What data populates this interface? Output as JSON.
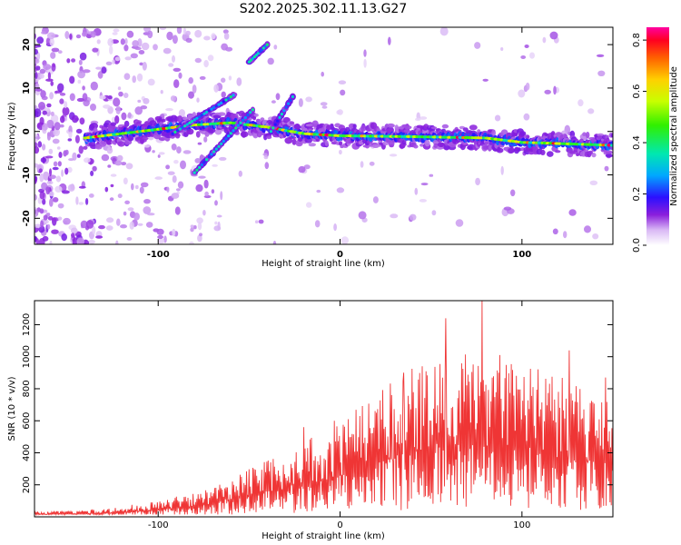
{
  "title": "S202.2025.302.11.13.G27",
  "chart_data": [
    {
      "type": "heatmap",
      "name": "spectrogram",
      "xlabel": "Height of straight line (km)",
      "ylabel": "Frequency (Hz)",
      "xlim": [
        -168,
        150
      ],
      "ylim": [
        -26,
        24
      ],
      "x_ticks": [
        -100,
        0,
        100
      ],
      "x_tick_labels": [
        "-100",
        "0",
        "100"
      ],
      "y_ticks": [
        -20,
        -10,
        0,
        10,
        20
      ],
      "y_tick_labels": [
        "-20",
        "-10",
        "0",
        "10",
        "20"
      ],
      "colorbar": {
        "label": "Normalized spectral amplitude",
        "range": [
          0,
          0.85
        ],
        "ticks": [
          0.0,
          0.2,
          0.4,
          0.6,
          0.8
        ],
        "tick_labels": [
          "0.0",
          "0.2",
          "0.4",
          "0.6",
          "0.8"
        ]
      },
      "main_band": {
        "x_range": [
          -140,
          150
        ],
        "freq_knots": [
          [
            -140,
            -1.5
          ],
          [
            -100,
            0.5
          ],
          [
            -80,
            1.5
          ],
          [
            -60,
            2
          ],
          [
            -40,
            1
          ],
          [
            -20,
            -0.5
          ],
          [
            0,
            -1
          ],
          [
            40,
            -1.2
          ],
          [
            80,
            -1.5
          ],
          [
            100,
            -2.5
          ],
          [
            150,
            -3.2
          ]
        ]
      },
      "branches": [
        {
          "x_range": [
            -92,
            -58
          ],
          "f_start": -0.5,
          "f_end": 8.5
        },
        {
          "x_range": [
            -80,
            -48
          ],
          "f_start": -9.5,
          "f_end": 5
        },
        {
          "x_range": [
            -50,
            -40
          ],
          "f_start": 16,
          "f_end": 20
        },
        {
          "x_range": [
            -38,
            -26
          ],
          "f_start": 0,
          "f_end": 8
        }
      ]
    },
    {
      "type": "line",
      "name": "snr",
      "color": "#ef3535",
      "xlabel": "Height of straight line (km)",
      "ylabel": "SNR (10 * v/v)",
      "xlim": [
        -168,
        150
      ],
      "ylim": [
        0,
        1350
      ],
      "x_ticks": [
        -100,
        0,
        100
      ],
      "x_tick_labels": [
        "-100",
        "0",
        "100"
      ],
      "y_ticks": [
        200,
        400,
        600,
        800,
        1000,
        1200
      ],
      "y_tick_labels": [
        "200",
        "400",
        "600",
        "800",
        "1000",
        "1200"
      ],
      "envelope": [
        [
          -168,
          30
        ],
        [
          -130,
          45
        ],
        [
          -100,
          90
        ],
        [
          -80,
          140
        ],
        [
          -60,
          230
        ],
        [
          -40,
          320
        ],
        [
          -20,
          440
        ],
        [
          0,
          540
        ],
        [
          20,
          700
        ],
        [
          40,
          850
        ],
        [
          60,
          950
        ],
        [
          80,
          900
        ],
        [
          100,
          900
        ],
        [
          120,
          820
        ],
        [
          150,
          650
        ]
      ],
      "peaks": [
        [
          -20,
          560
        ],
        [
          -3,
          600
        ],
        [
          35,
          900
        ],
        [
          58,
          1240
        ],
        [
          78,
          1350
        ],
        [
          88,
          1010
        ],
        [
          126,
          1040
        ],
        [
          146,
          870
        ]
      ]
    }
  ]
}
